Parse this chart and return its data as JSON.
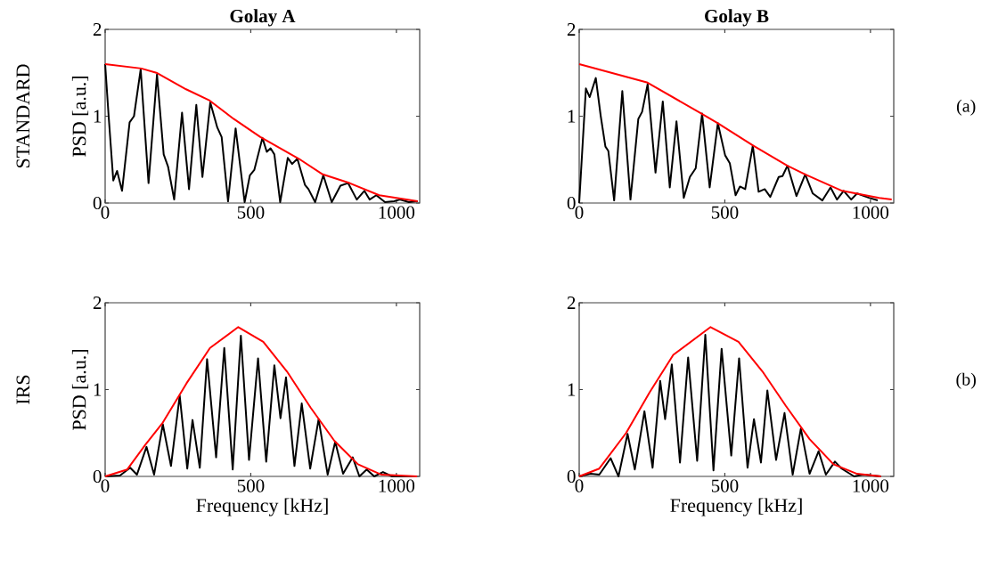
{
  "chart_data": [
    {
      "type": "line",
      "title": "Golay A",
      "ylabel": "PSD [a.u.]",
      "annotations": [
        "STANDARD"
      ],
      "xlim": [
        0,
        1080
      ],
      "ylim": [
        0,
        2
      ],
      "xticks": [
        0,
        500,
        1000
      ],
      "yticks": [
        0,
        1,
        2
      ],
      "grid": false,
      "marker": "none",
      "line_style": "solid",
      "series": [
        {
          "color": "#000000",
          "x": [
            0,
            12,
            28,
            41,
            58,
            84,
            99,
            122,
            149,
            178,
            201,
            216,
            237,
            264,
            288,
            313,
            334,
            361,
            385,
            400,
            422,
            448,
            479,
            497,
            512,
            540,
            555,
            568,
            581,
            601,
            627,
            642,
            660,
            686,
            698,
            721,
            749,
            778,
            808,
            834,
            864,
            890,
            908,
            931,
            961,
            992,
            1012,
            1043,
            1073
          ],
          "values": [
            1.6,
            1.0,
            0.26,
            0.37,
            0.14,
            0.93,
            1.0,
            1.54,
            0.23,
            1.48,
            0.56,
            0.42,
            0.04,
            1.04,
            0.16,
            1.13,
            0.3,
            1.16,
            0.87,
            0.76,
            0.02,
            0.86,
            0.01,
            0.32,
            0.38,
            0.75,
            0.59,
            0.63,
            0.56,
            0.01,
            0.52,
            0.45,
            0.51,
            0.21,
            0.16,
            0.01,
            0.32,
            0.01,
            0.2,
            0.23,
            0.04,
            0.14,
            0.04,
            0.09,
            0.01,
            0.02,
            0.04,
            0.01,
            0.02
          ]
        },
        {
          "color": "#ff0000",
          "x": [
            0,
            124,
            176,
            278,
            359,
            441,
            533,
            665,
            747,
            839,
            941,
            1073
          ],
          "values": [
            1.6,
            1.55,
            1.5,
            1.31,
            1.18,
            0.97,
            0.76,
            0.51,
            0.33,
            0.23,
            0.09,
            0.02
          ]
        }
      ]
    },
    {
      "type": "line",
      "title": "Golay B",
      "annotations": [
        "(a)"
      ],
      "xlim": [
        0,
        1080
      ],
      "ylim": [
        0,
        2
      ],
      "xticks": [
        0,
        500,
        1000
      ],
      "yticks": [
        0,
        1,
        2
      ],
      "grid": false,
      "marker": "none",
      "line_style": "solid",
      "series": [
        {
          "color": "#000000",
          "x": [
            0,
            23,
            36,
            57,
            74,
            90,
            100,
            120,
            148,
            176,
            203,
            216,
            235,
            262,
            287,
            311,
            334,
            359,
            380,
            400,
            422,
            448,
            476,
            501,
            517,
            537,
            552,
            570,
            596,
            616,
            637,
            656,
            685,
            698,
            715,
            746,
            776,
            802,
            835,
            863,
            885,
            908,
            934,
            954,
            995,
            1025
          ],
          "values": [
            0,
            1.32,
            1.22,
            1.44,
            1.0,
            0.65,
            0.6,
            0.03,
            1.29,
            0.04,
            0.97,
            1.05,
            1.37,
            0.35,
            1.17,
            0.18,
            0.94,
            0.06,
            0.3,
            0.4,
            1.03,
            0.18,
            0.92,
            0.55,
            0.46,
            0.09,
            0.19,
            0.16,
            0.66,
            0.13,
            0.16,
            0.07,
            0.3,
            0.31,
            0.43,
            0.08,
            0.33,
            0.11,
            0.03,
            0.18,
            0.04,
            0.14,
            0.04,
            0.11,
            0.06,
            0.03
          ]
        },
        {
          "color": "#ff0000",
          "x": [
            0,
            232,
            420,
            476,
            598,
            715,
            776,
            903,
            1030,
            1073
          ],
          "values": [
            1.6,
            1.39,
            1.03,
            0.92,
            0.66,
            0.43,
            0.33,
            0.14,
            0.06,
            0.04
          ]
        }
      ]
    },
    {
      "type": "line",
      "ylabel": "PSD [a.u.]",
      "annotations": [
        "IRS"
      ],
      "xlim": [
        0,
        1080
      ],
      "ylim": [
        0,
        2
      ],
      "xticks": [
        0,
        500,
        1000
      ],
      "yticks": [
        0,
        1,
        2
      ],
      "grid": false,
      "marker": "none",
      "line_style": "solid",
      "xlabel": "Frequency [kHz]",
      "series": [
        {
          "color": "#000000",
          "x": [
            0,
            51,
            86,
            109,
            142,
            168,
            198,
            226,
            256,
            282,
            300,
            325,
            350,
            381,
            409,
            438,
            466,
            494,
            525,
            553,
            581,
            602,
            621,
            650,
            675,
            704,
            733,
            764,
            790,
            817,
            850,
            873,
            898,
            924,
            954,
            985,
            1030,
            1071
          ],
          "values": [
            0,
            0.01,
            0.1,
            0.02,
            0.34,
            0.02,
            0.6,
            0.12,
            0.93,
            0.09,
            0.65,
            0.1,
            1.35,
            0.22,
            1.48,
            0.08,
            1.62,
            0.19,
            1.36,
            0.17,
            1.28,
            0.67,
            1.14,
            0.12,
            0.84,
            0.09,
            0.66,
            0.02,
            0.4,
            0.03,
            0.22,
            0,
            0.08,
            0,
            0.05,
            0,
            0,
            0
          ]
        },
        {
          "color": "#ff0000",
          "x": [
            0,
            76,
            137,
            198,
            279,
            360,
            457,
            543,
            624,
            706,
            787,
            868,
            949,
            1071
          ],
          "values": [
            0,
            0.08,
            0.36,
            0.62,
            1.07,
            1.48,
            1.72,
            1.55,
            1.21,
            0.79,
            0.41,
            0.14,
            0.02,
            0
          ]
        }
      ]
    },
    {
      "type": "line",
      "annotations": [
        "(b)"
      ],
      "xlim": [
        0,
        1080
      ],
      "ylim": [
        0,
        2
      ],
      "xticks": [
        0,
        500,
        1000
      ],
      "yticks": [
        0,
        1,
        2
      ],
      "grid": false,
      "marker": "none",
      "line_style": "solid",
      "xlabel": "Frequency [kHz]",
      "series": [
        {
          "color": "#000000",
          "x": [
            0,
            39,
            69,
            108,
            135,
            166,
            191,
            224,
            252,
            278,
            295,
            318,
            346,
            374,
            405,
            433,
            461,
            489,
            522,
            549,
            578,
            600,
            624,
            646,
            676,
            705,
            733,
            761,
            791,
            822,
            847,
            878,
            901,
            944,
            975,
            1036
          ],
          "values": [
            0,
            0.03,
            0.02,
            0.21,
            0,
            0.49,
            0.08,
            0.75,
            0.1,
            1.1,
            0.66,
            1.29,
            0.16,
            1.37,
            0.18,
            1.63,
            0.07,
            1.47,
            0.24,
            1.36,
            0.1,
            0.66,
            0.16,
            0.99,
            0.19,
            0.73,
            0.02,
            0.55,
            0.03,
            0.29,
            0.02,
            0.17,
            0.09,
            0,
            0.02,
            0
          ]
        },
        {
          "color": "#ff0000",
          "x": [
            0,
            69,
            161,
            242,
            323,
            451,
            547,
            629,
            710,
            791,
            873,
            954,
            1036
          ],
          "values": [
            0,
            0.09,
            0.5,
            0.97,
            1.4,
            1.72,
            1.55,
            1.21,
            0.81,
            0.43,
            0.14,
            0.03,
            0
          ]
        }
      ]
    }
  ]
}
